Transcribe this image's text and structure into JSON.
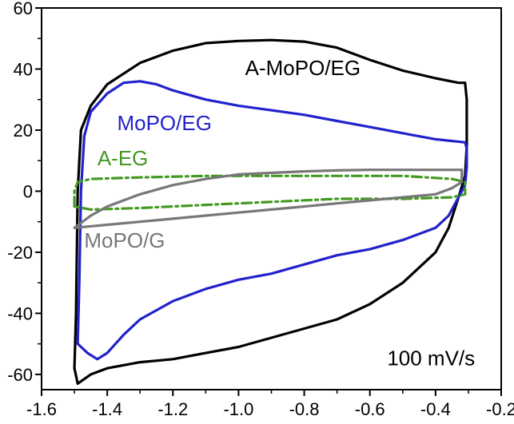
{
  "chart_data": {
    "type": "line",
    "title": "",
    "xlabel": "",
    "ylabel": "",
    "xlim": [
      -1.6,
      -0.2
    ],
    "ylim": [
      -65,
      60
    ],
    "x_ticks": [
      "-1.6",
      "-1.4",
      "-1.2",
      "-1.0",
      "-0.8",
      "-0.6",
      "-0.4",
      "-0.2"
    ],
    "y_ticks": [
      "60",
      "40",
      "20",
      "0",
      "-20",
      "-40",
      "-60"
    ],
    "annotation": "100 mV/s",
    "grid": false,
    "series": [
      {
        "name": "A-MoPO/EG",
        "color": "#000000",
        "dash": "solid",
        "points": [
          [
            -1.5,
            -58
          ],
          [
            -1.495,
            -40
          ],
          [
            -1.49,
            0
          ],
          [
            -1.48,
            20
          ],
          [
            -1.45,
            28
          ],
          [
            -1.4,
            35
          ],
          [
            -1.3,
            42
          ],
          [
            -1.2,
            46
          ],
          [
            -1.1,
            48.5
          ],
          [
            -1.0,
            49.2
          ],
          [
            -0.9,
            49.5
          ],
          [
            -0.8,
            49
          ],
          [
            -0.7,
            47
          ],
          [
            -0.6,
            43
          ],
          [
            -0.5,
            39.5
          ],
          [
            -0.4,
            37
          ],
          [
            -0.33,
            35.5
          ],
          [
            -0.31,
            35.5
          ],
          [
            -0.305,
            30
          ],
          [
            -0.305,
            15
          ],
          [
            -0.31,
            5
          ],
          [
            -0.33,
            -2
          ],
          [
            -0.36,
            -12
          ],
          [
            -0.4,
            -20
          ],
          [
            -0.5,
            -30
          ],
          [
            -0.6,
            -37
          ],
          [
            -0.7,
            -42
          ],
          [
            -0.8,
            -45
          ],
          [
            -0.9,
            -48
          ],
          [
            -1.0,
            -51
          ],
          [
            -1.1,
            -53
          ],
          [
            -1.2,
            -55
          ],
          [
            -1.3,
            -56
          ],
          [
            -1.4,
            -58
          ],
          [
            -1.45,
            -60
          ],
          [
            -1.49,
            -63
          ],
          [
            -1.5,
            -58
          ]
        ]
      },
      {
        "name": "MoPO/EG",
        "color": "#2222cc",
        "dash": "solid",
        "points": [
          [
            -1.49,
            -50
          ],
          [
            -1.485,
            -30
          ],
          [
            -1.48,
            0
          ],
          [
            -1.47,
            18
          ],
          [
            -1.45,
            26
          ],
          [
            -1.4,
            32
          ],
          [
            -1.35,
            35.5
          ],
          [
            -1.3,
            36
          ],
          [
            -1.25,
            35
          ],
          [
            -1.2,
            33
          ],
          [
            -1.1,
            30
          ],
          [
            -1.0,
            28
          ],
          [
            -0.9,
            26.5
          ],
          [
            -0.8,
            25
          ],
          [
            -0.7,
            23
          ],
          [
            -0.6,
            21
          ],
          [
            -0.5,
            19
          ],
          [
            -0.4,
            17
          ],
          [
            -0.31,
            16
          ],
          [
            -0.305,
            14
          ],
          [
            -0.305,
            8
          ],
          [
            -0.31,
            2
          ],
          [
            -0.33,
            -2
          ],
          [
            -0.36,
            -8
          ],
          [
            -0.4,
            -12
          ],
          [
            -0.5,
            -16
          ],
          [
            -0.6,
            -19
          ],
          [
            -0.7,
            -21
          ],
          [
            -0.8,
            -24
          ],
          [
            -0.9,
            -27
          ],
          [
            -1.0,
            -29
          ],
          [
            -1.1,
            -32
          ],
          [
            -1.2,
            -36
          ],
          [
            -1.3,
            -42
          ],
          [
            -1.35,
            -47
          ],
          [
            -1.4,
            -53
          ],
          [
            -1.43,
            -55
          ],
          [
            -1.46,
            -53
          ],
          [
            -1.49,
            -50
          ]
        ]
      },
      {
        "name": "A-EG",
        "color": "#449922",
        "dash": "dashdot",
        "points": [
          [
            -1.5,
            -5
          ],
          [
            -1.5,
            0
          ],
          [
            -1.49,
            3
          ],
          [
            -1.45,
            4
          ],
          [
            -1.3,
            4.5
          ],
          [
            -1.1,
            5
          ],
          [
            -0.9,
            5
          ],
          [
            -0.7,
            5
          ],
          [
            -0.5,
            5
          ],
          [
            -0.35,
            4
          ],
          [
            -0.31,
            3
          ],
          [
            -0.31,
            -1
          ],
          [
            -0.35,
            -2
          ],
          [
            -0.5,
            -2.5
          ],
          [
            -0.7,
            -2.5
          ],
          [
            -0.9,
            -3.5
          ],
          [
            -1.1,
            -4.5
          ],
          [
            -1.3,
            -5.5
          ],
          [
            -1.45,
            -6
          ],
          [
            -1.5,
            -5
          ]
        ]
      },
      {
        "name": "MoPO/G",
        "color": "#777777",
        "dash": "solid",
        "points": [
          [
            -1.5,
            -12
          ],
          [
            -1.45,
            -8
          ],
          [
            -1.4,
            -5
          ],
          [
            -1.3,
            -1
          ],
          [
            -1.2,
            2
          ],
          [
            -1.1,
            4
          ],
          [
            -1.0,
            5.5
          ],
          [
            -0.9,
            6
          ],
          [
            -0.8,
            6.5
          ],
          [
            -0.7,
            6.8
          ],
          [
            -0.6,
            7
          ],
          [
            -0.5,
            7
          ],
          [
            -0.4,
            7
          ],
          [
            -0.32,
            7
          ],
          [
            -0.32,
            3
          ],
          [
            -0.35,
            1
          ],
          [
            -0.4,
            -1
          ],
          [
            -0.5,
            -2
          ],
          [
            -0.6,
            -3
          ],
          [
            -0.7,
            -4
          ],
          [
            -0.8,
            -5
          ],
          [
            -0.9,
            -6
          ],
          [
            -1.0,
            -7
          ],
          [
            -1.1,
            -8
          ],
          [
            -1.2,
            -9
          ],
          [
            -1.3,
            -10
          ],
          [
            -1.4,
            -11
          ],
          [
            -1.5,
            -12
          ]
        ]
      }
    ],
    "labels": [
      {
        "text": "A-MoPO/EG",
        "x": -0.98,
        "y": 38,
        "color": "#000000"
      },
      {
        "text": "MoPO/EG",
        "x": -1.37,
        "y": 20,
        "color": "#2222cc"
      },
      {
        "text": "A-EG",
        "x": -1.43,
        "y": 8.5,
        "color": "#449922"
      },
      {
        "text": "MoPO/G",
        "x": -1.47,
        "y": -18.5,
        "color": "#777777"
      },
      {
        "text": "100 mV/s",
        "x": -0.28,
        "y": -57,
        "color": "#000000",
        "anchor": "end"
      }
    ]
  }
}
